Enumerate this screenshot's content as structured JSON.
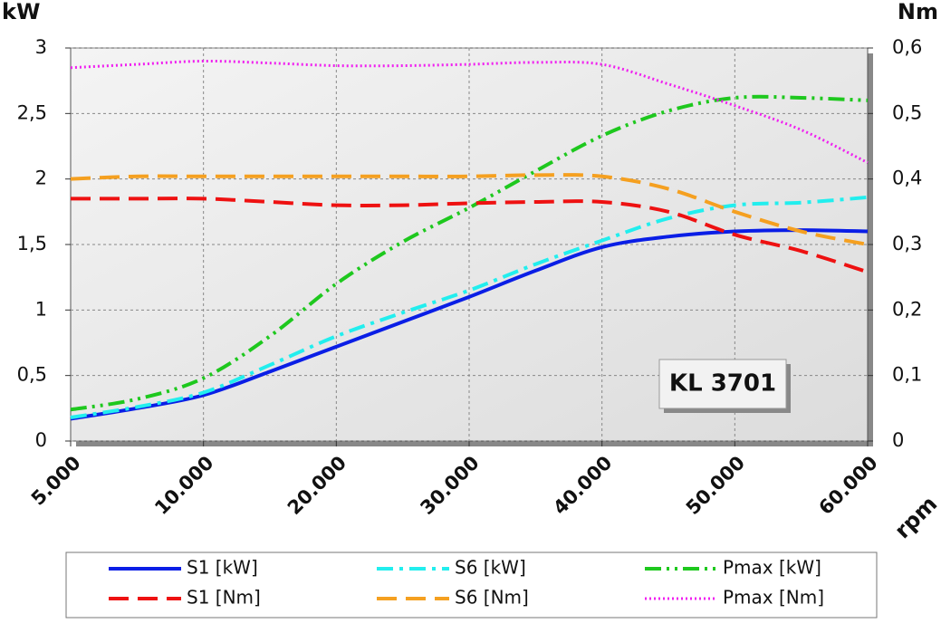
{
  "chart_data": {
    "type": "line",
    "y_label": "kW",
    "y2_label": "Nm",
    "x_label": "rpm",
    "annotation": "KL 3701",
    "categories": [
      "5.000",
      null,
      "10.000",
      null,
      "20.000",
      null,
      "30.000",
      null,
      "40.000",
      null,
      "50.000",
      null,
      "60.000"
    ],
    "series": [
      {
        "name": "S1 [kW]",
        "color": "#0a1ee6",
        "style": "solid",
        "values": [
          0.17,
          0.25,
          0.35,
          0.53,
          0.72,
          0.91,
          1.1,
          1.3,
          1.48,
          1.56,
          1.6,
          1.61,
          1.6
        ]
      },
      {
        "name": "S6 [kW]",
        "color": "#22eeee",
        "style": "dashdot",
        "values": [
          0.18,
          0.26,
          0.37,
          0.58,
          0.8,
          0.98,
          1.15,
          1.35,
          1.53,
          1.7,
          1.8,
          1.82,
          1.86
        ]
      },
      {
        "name": "Pmax [kW]",
        "color": "#1ec81e",
        "style": "dashdotdot",
        "values": [
          0.24,
          0.32,
          0.48,
          0.8,
          1.2,
          1.52,
          1.78,
          2.06,
          2.33,
          2.52,
          2.62,
          2.62,
          2.6
        ]
      },
      {
        "name": "S1 [Nm]",
        "color": "#ee1111",
        "style": "dashed",
        "axis": "y2",
        "values": [
          0.37,
          0.37,
          0.37,
          0.365,
          0.36,
          0.36,
          0.363,
          0.365,
          0.365,
          0.35,
          0.315,
          0.29,
          0.258
        ]
      },
      {
        "name": "S6 [Nm]",
        "color": "#f5a020",
        "style": "dashed",
        "axis": "y2",
        "values": [
          0.4,
          0.404,
          0.404,
          0.404,
          0.404,
          0.404,
          0.404,
          0.406,
          0.404,
          0.385,
          0.35,
          0.32,
          0.3
        ]
      },
      {
        "name": "Pmax [Nm]",
        "color": "#f020f0",
        "style": "dotted",
        "axis": "y2",
        "values": [
          0.57,
          0.575,
          0.58,
          0.577,
          0.573,
          0.573,
          0.575,
          0.578,
          0.575,
          0.545,
          0.512,
          0.475,
          0.425
        ]
      }
    ],
    "ylim": [
      0,
      3
    ],
    "yticks": [
      0,
      {
        "value": 0.5,
        "label": "0,5"
      },
      1,
      {
        "value": 1.5,
        "label": "1,5"
      },
      2,
      {
        "value": 2.5,
        "label": "2,5"
      },
      3
    ],
    "y2lim": [
      0,
      0.6
    ],
    "y2ticks": [
      0,
      {
        "value": 0.1,
        "label": "0,1"
      },
      {
        "value": 0.2,
        "label": "0,2"
      },
      {
        "value": 0.3,
        "label": "0,3"
      },
      {
        "value": 0.4,
        "label": "0,4"
      },
      {
        "value": 0.5,
        "label": "0,5"
      },
      {
        "value": 0.6,
        "label": "0,6"
      }
    ],
    "grid": true,
    "legend": "bottom"
  }
}
